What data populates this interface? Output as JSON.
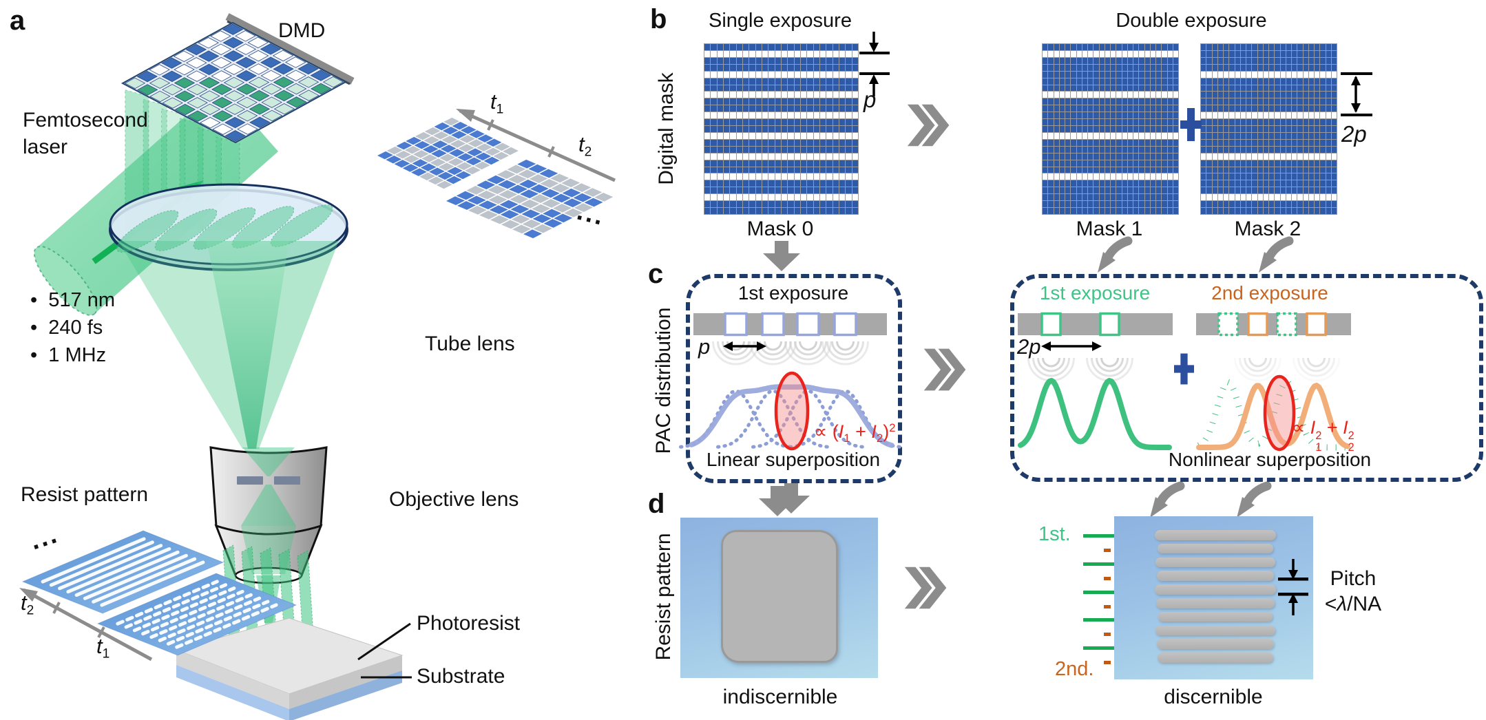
{
  "colors": {
    "mask_blue": "#2e5aa8",
    "grid_line": "#9a9a9a",
    "arrow_gray": "#8c8c8c",
    "plus_blue": "#2b4f9e",
    "box_navy": "#1e3a68",
    "bar_gray": "#a8a8a8",
    "periwinkle": "#96a5da",
    "green": "#3ec07f",
    "green_text": "#3fc487",
    "orange_curve": "#f2ae78",
    "orange_square": "#e59a55",
    "orange_text": "#c8641f",
    "red": "#e8241d",
    "laser_green": "#3ec482"
  },
  "panel_a": {
    "label": "a",
    "dmd": "DMD",
    "laser_line1": "Femtosecond",
    "laser_line2": "laser",
    "bullets": [
      "517 nm",
      "240 fs",
      "1 MHz"
    ],
    "bullet_char": "•",
    "tube_lens": "Tube lens",
    "objective": "Objective lens",
    "resist_pattern": "Resist pattern",
    "photoresist": "Photoresist",
    "substrate": "Substrate",
    "dots_top": "...",
    "dots_bottom": "...",
    "t1": [
      {
        "t": "t",
        "k": "i"
      },
      {
        "t": "1",
        "k": "sub"
      }
    ],
    "t2": [
      {
        "t": "t",
        "k": "i"
      },
      {
        "t": "2",
        "k": "sub"
      }
    ]
  },
  "panel_b": {
    "label": "b",
    "single_title": "Single exposure",
    "double_title": "Double exposure",
    "axis_label": "Digital mask",
    "pitch_label": [
      {
        "t": "p",
        "k": "i"
      }
    ],
    "pitch2_label": [
      {
        "t": "2p",
        "k": "i"
      }
    ],
    "masks": {
      "mask0": {
        "label": "Mask 0",
        "cols": 24,
        "rows": 25,
        "white_rows": [
          1,
          4,
          7,
          10,
          13,
          16,
          19,
          22
        ]
      },
      "mask1": {
        "label": "Mask 1",
        "cols": 24,
        "rows": 25,
        "white_rows": [
          1,
          7,
          13,
          19
        ]
      },
      "mask2": {
        "label": "Mask 2",
        "cols": 24,
        "rows": 25,
        "white_rows": [
          4,
          10,
          16,
          22
        ]
      }
    }
  },
  "panel_c": {
    "label": "c",
    "axis_label": "PAC distribution",
    "left": {
      "title": "1st exposure",
      "pitch": [
        {
          "t": "p",
          "k": "i"
        }
      ],
      "formula": [
        {
          "t": "∝ ("
        },
        {
          "t": "I",
          "k": "i"
        },
        {
          "t": "1",
          "k": "sub"
        },
        {
          "t": " + "
        },
        {
          "t": "I",
          "k": "i"
        },
        {
          "t": "2",
          "k": "sub"
        },
        {
          "t": ")"
        },
        {
          "t": "2",
          "k": "sup"
        }
      ],
      "caption": "Linear superposition",
      "apertures": 4
    },
    "right": {
      "title1": "1st exposure",
      "title2": "2nd exposure",
      "pitch": [
        {
          "t": "2p",
          "k": "i"
        }
      ],
      "formula": [
        {
          "t": "∝ "
        },
        {
          "t": "I",
          "k": "i"
        },
        {
          "t": "2|1",
          "k": "ss"
        },
        {
          "t": " + "
        },
        {
          "t": "I",
          "k": "i"
        },
        {
          "t": "2|2",
          "k": "ss"
        }
      ],
      "caption": "Nonlinear superposition"
    }
  },
  "panel_d": {
    "label": "d",
    "axis_label": "Resist pattern",
    "indiscernible": "indiscernible",
    "discernible": "discernible",
    "first": "1st.",
    "second": "2nd.",
    "pitch_line1": "Pitch",
    "pitch_line2": [
      {
        "t": "<"
      },
      {
        "t": "λ",
        "k": "i"
      },
      {
        "t": "/NA"
      }
    ],
    "first_lines": 5,
    "second_lines": 5,
    "resist_bars": 10
  }
}
